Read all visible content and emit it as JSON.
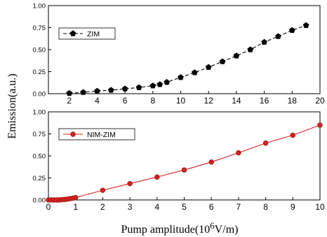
{
  "ylabel": "Emission(a.u.)",
  "xlabel_prefix": "Pump amplitude(10",
  "xlabel_exp": "6",
  "xlabel_suffix": "V/m)",
  "chart_data": [
    {
      "type": "line",
      "panel": "top",
      "xlim": [
        0.5,
        20
      ],
      "ylim": [
        0,
        1
      ],
      "xticks": [
        "2",
        "4",
        "6",
        "8",
        "10",
        "12",
        "14",
        "16",
        "18",
        "20"
      ],
      "yticks": [
        "0.00",
        "0.25",
        "0.50",
        "0.75",
        "1.00"
      ],
      "grid": false,
      "legend_position": "top-left",
      "series": [
        {
          "name": "ZIM",
          "color": "#000000",
          "marker": "pentagon",
          "line_style": "dashed",
          "x": [
            2,
            3,
            4,
            5,
            6,
            7,
            8,
            8.5,
            9,
            10,
            11,
            12,
            13,
            14,
            15,
            16,
            17,
            18,
            19
          ],
          "y": [
            0.005,
            0.015,
            0.03,
            0.04,
            0.055,
            0.07,
            0.09,
            0.105,
            0.13,
            0.185,
            0.24,
            0.3,
            0.365,
            0.43,
            0.5,
            0.585,
            0.65,
            0.72,
            0.775
          ]
        }
      ]
    },
    {
      "type": "line",
      "panel": "bottom",
      "xlim": [
        0,
        10
      ],
      "ylim": [
        0,
        1
      ],
      "xticks": [
        "0",
        "1",
        "2",
        "3",
        "4",
        "5",
        "6",
        "7",
        "8",
        "9",
        "10"
      ],
      "yticks": [
        "0.00",
        "0.25",
        "0.50",
        "0.75",
        "1.00"
      ],
      "grid": false,
      "legend_position": "top-left",
      "series": [
        {
          "name": "NIM-ZIM",
          "color": "#d42020",
          "marker": "circle",
          "line_style": "solid",
          "x": [
            0,
            0.1,
            0.2,
            0.3,
            0.4,
            0.5,
            0.6,
            0.7,
            0.8,
            0.9,
            1,
            2,
            3,
            4,
            5,
            6,
            7,
            8,
            9,
            10
          ],
          "y": [
            0,
            0,
            0,
            0,
            0,
            0.003,
            0.006,
            0.01,
            0.015,
            0.02,
            0.027,
            0.11,
            0.185,
            0.26,
            0.34,
            0.43,
            0.535,
            0.645,
            0.735,
            0.85
          ]
        }
      ]
    }
  ]
}
